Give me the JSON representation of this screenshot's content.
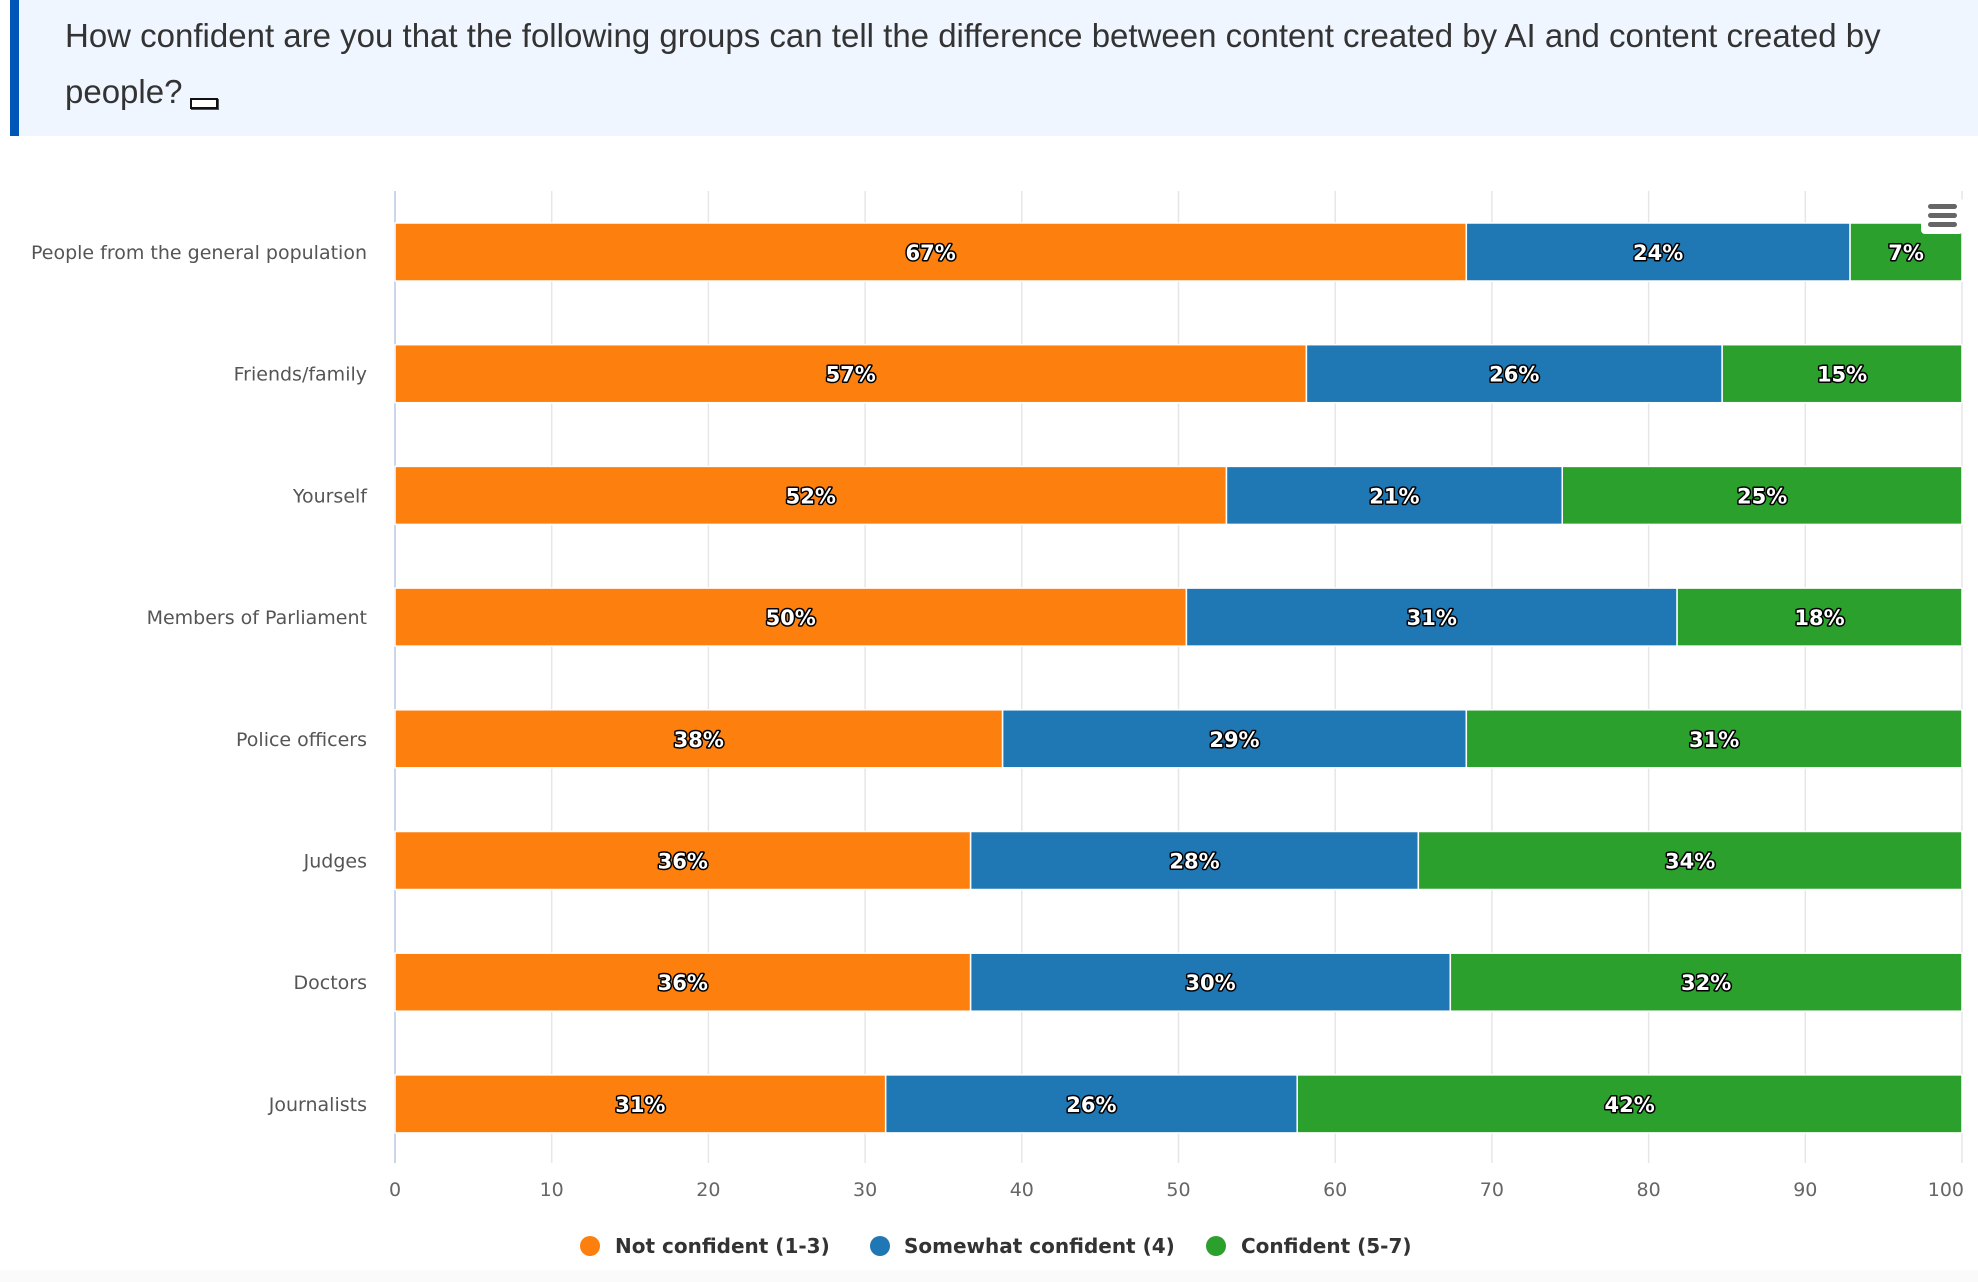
{
  "header": {
    "title": "How confident are you that the following groups can tell the difference between content created by AI and content created by people?",
    "toggle_icon": "expand-toggle-icon"
  },
  "menu": {
    "icon": "hamburger-menu-icon"
  },
  "colors": {
    "header_border": "#0055b8",
    "header_bg": "#eff6ff",
    "not_confident": "#fd7f0e",
    "somewhat_confident": "#1f77b4",
    "confident": "#2ca02c"
  },
  "chart_data": {
    "type": "bar",
    "orientation": "horizontal",
    "stacking": "percent",
    "title": "How confident are you that the following groups can tell the difference between content created by AI and content created by people?",
    "xlabel": "",
    "ylabel": "",
    "xlim": [
      0,
      100
    ],
    "xticks": [
      0,
      10,
      20,
      30,
      40,
      50,
      60,
      70,
      80,
      90,
      100
    ],
    "grid": true,
    "legend_position": "bottom-center",
    "categories": [
      "People from the general population",
      "Friends/family",
      "Yourself",
      "Members of Parliament",
      "Police officers",
      "Judges",
      "Doctors",
      "Journalists"
    ],
    "series": [
      {
        "name": "Not confident (1-3)",
        "color": "#fd7f0e",
        "values": [
          67,
          57,
          52,
          50,
          38,
          36,
          36,
          31
        ]
      },
      {
        "name": "Somewhat confident (4)",
        "color": "#1f77b4",
        "values": [
          24,
          26,
          21,
          31,
          29,
          28,
          30,
          26
        ]
      },
      {
        "name": "Confident (5-7)",
        "color": "#2ca02c",
        "values": [
          7,
          15,
          25,
          18,
          31,
          34,
          32,
          42
        ]
      }
    ],
    "data_label_suffix": "%"
  }
}
